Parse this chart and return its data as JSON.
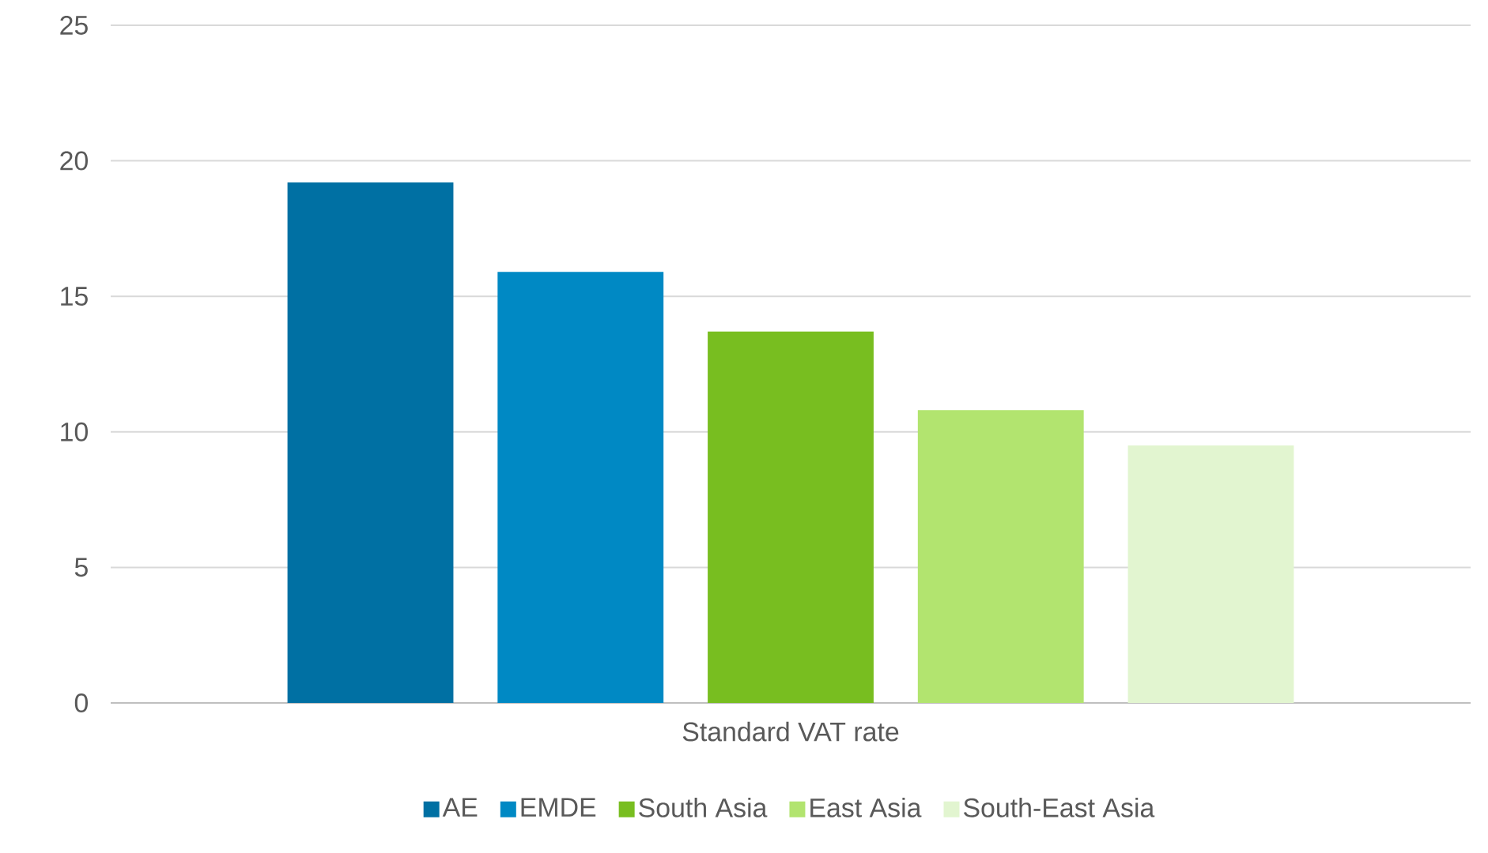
{
  "chart_data": {
    "type": "bar",
    "categories": [
      "Standard VAT rate"
    ],
    "series": [
      {
        "name": "AE",
        "color": "#0070a3",
        "values": [
          19.2
        ]
      },
      {
        "name": "EMDE",
        "color": "#0089c4",
        "values": [
          15.9
        ]
      },
      {
        "name": "South Asia",
        "color": "#78be20",
        "values": [
          13.7
        ]
      },
      {
        "name": "East Asia",
        "color": "#b2e46f",
        "values": [
          10.8
        ]
      },
      {
        "name": "South-East Asia",
        "color": "#e2f5d0",
        "values": [
          9.5
        ]
      }
    ],
    "ylim": [
      0,
      25
    ],
    "yticks": [
      0,
      5,
      10,
      15,
      20,
      25
    ],
    "grid": "y",
    "legend": "bottom"
  }
}
